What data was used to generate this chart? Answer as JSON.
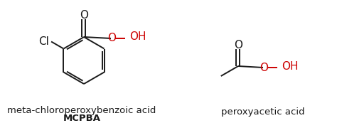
{
  "bg_color": "#ffffff",
  "text_color": "#1a1a1a",
  "red_color": "#cc0000",
  "label1_line1": "meta-chloroperoxybenzoic acid",
  "label1_line2": "MCPBA",
  "label2": "peroxyacetic acid",
  "font_size_label": 9.5,
  "font_size_atom": 11
}
